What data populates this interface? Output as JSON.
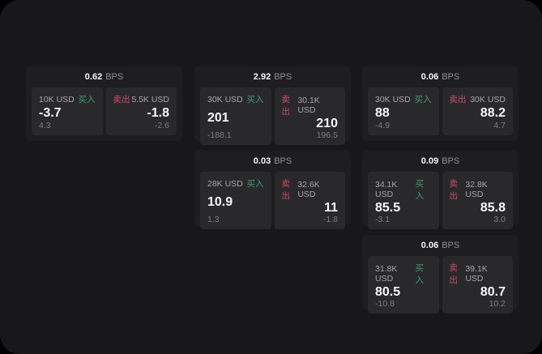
{
  "labels": {
    "bps": "BPS",
    "buy": "买入",
    "sell": "卖出"
  },
  "colors": {
    "background": "#18181a",
    "card": "#1e1e20",
    "panel": "#29292c",
    "buy_green": "#3aa06b",
    "sell_red": "#cf4a63",
    "value_white": "#f6f6f6",
    "label_gray": "#a6a6a6",
    "sub_gray": "#7d7d7d"
  },
  "cards": [
    {
      "spread": "0.62",
      "buy": {
        "amount": "10K USD",
        "price": "-3.7",
        "change": "4.3"
      },
      "sell": {
        "amount": "5.5K USD",
        "price": "-1.8",
        "change": "-2.6"
      }
    },
    {
      "spread": "2.92",
      "buy": {
        "amount": "30K USD",
        "price": "201",
        "change": "-188.1"
      },
      "sell": {
        "amount": "30.1K USD",
        "price": "210",
        "change": "196.5"
      }
    },
    {
      "spread": "0.06",
      "buy": {
        "amount": "30K USD",
        "price": "88",
        "change": "-4.9"
      },
      "sell": {
        "amount": "30K USD",
        "price": "88.2",
        "change": "4.7"
      }
    },
    {
      "spread": "0.03",
      "buy": {
        "amount": "28K USD",
        "price": "10.9",
        "change": "1.3"
      },
      "sell": {
        "amount": "32.6K USD",
        "price": "11",
        "change": "-1.8"
      }
    },
    {
      "spread": "0.09",
      "buy": {
        "amount": "34.1K USD",
        "price": "85.5",
        "change": "-3.1"
      },
      "sell": {
        "amount": "32.8K USD",
        "price": "85.8",
        "change": "3.0"
      }
    },
    {
      "spread": "0.06",
      "buy": {
        "amount": "31.8K USD",
        "price": "80.5",
        "change": "-10.8"
      },
      "sell": {
        "amount": "39.1K USD",
        "price": "80.7",
        "change": "10.2"
      }
    }
  ]
}
